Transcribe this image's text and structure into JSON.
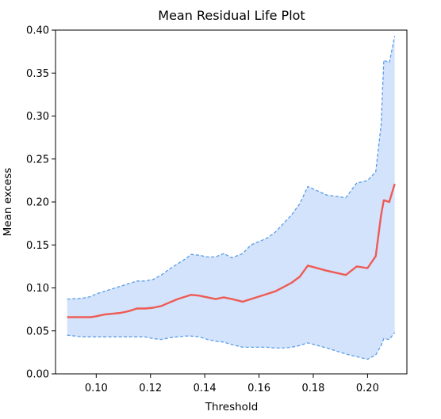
{
  "chart_data": {
    "type": "line",
    "title": "Mean Residual Life Plot",
    "xlabel": "Threshold",
    "ylabel": "Mean excess",
    "xlim": [
      0.085,
      0.2145
    ],
    "ylim": [
      0.0,
      0.4
    ],
    "xticks": [
      0.1,
      0.12,
      0.14,
      0.16,
      0.18,
      0.2
    ],
    "xtick_labels": [
      "0.10",
      "0.12",
      "0.14",
      "0.16",
      "0.18",
      "0.20"
    ],
    "yticks": [
      0.0,
      0.05,
      0.1,
      0.15,
      0.2,
      0.25,
      0.3,
      0.35,
      0.4
    ],
    "ytick_labels": [
      "0.00",
      "0.05",
      "0.10",
      "0.15",
      "0.20",
      "0.25",
      "0.30",
      "0.35",
      "0.40"
    ],
    "grid": false,
    "legend": false,
    "colors": {
      "mean_line": "#ee5b55",
      "ci_line": "#5b9de8",
      "ci_fill": "#d3e3fb"
    },
    "x": [
      0.0893,
      0.095,
      0.098,
      0.1,
      0.103,
      0.106,
      0.109,
      0.112,
      0.115,
      0.118,
      0.121,
      0.124,
      0.127,
      0.13,
      0.133,
      0.135,
      0.138,
      0.141,
      0.144,
      0.147,
      0.15,
      0.154,
      0.157,
      0.16,
      0.163,
      0.166,
      0.169,
      0.172,
      0.175,
      0.178,
      0.185,
      0.192,
      0.196,
      0.2,
      0.203,
      0.205,
      0.206,
      0.208,
      0.21
    ],
    "series": [
      {
        "role": "mean",
        "values": [
          0.066,
          0.066,
          0.066,
          0.067,
          0.069,
          0.07,
          0.071,
          0.073,
          0.076,
          0.076,
          0.077,
          0.079,
          0.083,
          0.087,
          0.09,
          0.092,
          0.091,
          0.089,
          0.087,
          0.089,
          0.087,
          0.084,
          0.087,
          0.09,
          0.093,
          0.096,
          0.101,
          0.106,
          0.113,
          0.126,
          0.12,
          0.115,
          0.125,
          0.123,
          0.137,
          0.185,
          0.202,
          0.2,
          0.221
        ]
      },
      {
        "role": "ci_upper",
        "values": [
          0.087,
          0.088,
          0.09,
          0.093,
          0.096,
          0.099,
          0.102,
          0.105,
          0.108,
          0.108,
          0.11,
          0.115,
          0.122,
          0.128,
          0.134,
          0.139,
          0.138,
          0.136,
          0.136,
          0.14,
          0.135,
          0.14,
          0.15,
          0.154,
          0.158,
          0.165,
          0.175,
          0.185,
          0.198,
          0.218,
          0.208,
          0.205,
          0.222,
          0.225,
          0.235,
          0.29,
          0.365,
          0.362,
          0.393
        ]
      },
      {
        "role": "ci_lower",
        "values": [
          0.045,
          0.043,
          0.043,
          0.043,
          0.043,
          0.043,
          0.043,
          0.043,
          0.043,
          0.043,
          0.041,
          0.04,
          0.042,
          0.043,
          0.044,
          0.044,
          0.043,
          0.04,
          0.038,
          0.037,
          0.034,
          0.031,
          0.031,
          0.031,
          0.031,
          0.03,
          0.03,
          0.031,
          0.033,
          0.036,
          0.03,
          0.023,
          0.02,
          0.017,
          0.022,
          0.033,
          0.041,
          0.04,
          0.048
        ]
      }
    ]
  }
}
